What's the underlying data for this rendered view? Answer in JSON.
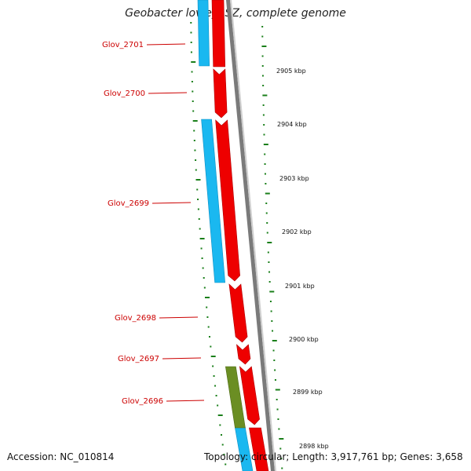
{
  "title": "Geobacter lovleyi SZ, complete genome",
  "footer": {
    "accession": "Accession: NC_010814",
    "summary": "Topology: circular; Length: 3,917,761 bp; Genes: 3,658"
  },
  "colors": {
    "forward_cds": "#ee0000",
    "reverse_cds": "#1ab8f0",
    "other_feature": "#6b8e23",
    "gc_tick": "#1a7f1a",
    "backbone": "#7a7a7a",
    "label_line": "#cc0000"
  },
  "genes": [
    {
      "label": "Glov_2701"
    },
    {
      "label": "Glov_2700"
    },
    {
      "label": "Glov_2699"
    },
    {
      "label": "Glov_2698"
    },
    {
      "label": "Glov_2697"
    },
    {
      "label": "Glov_2696"
    }
  ],
  "kbp_labels": [
    "2905 kbp",
    "2904 kbp",
    "2903 kbp",
    "2902 kbp",
    "2901 kbp",
    "2900 kbp",
    "2899 kbp",
    "2898 kbp"
  ]
}
